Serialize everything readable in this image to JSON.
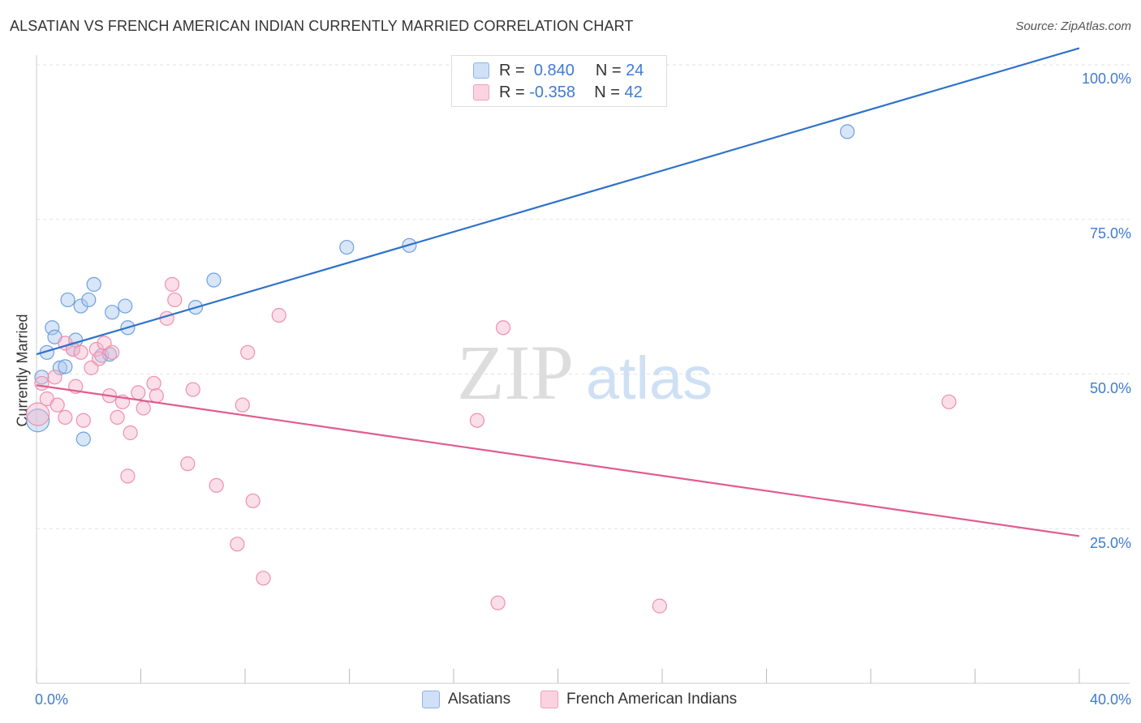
{
  "title": "ALSATIAN VS FRENCH AMERICAN INDIAN CURRENTLY MARRIED CORRELATION CHART",
  "source": "Source: ZipAtlas.com",
  "watermark": {
    "zip": "ZIP",
    "atlas": "atlas"
  },
  "legend_top": [
    {
      "r_label": "R =",
      "r_value": "0.840",
      "n_label": "N =",
      "n_value": "24",
      "color": "#a9c7f0"
    },
    {
      "r_label": "R =",
      "r_value": "-0.358",
      "n_label": "N =",
      "n_value": "42",
      "color": "#f6b8cc"
    }
  ],
  "x_tick_labels": {
    "min": "0.0%",
    "max": "40.0%"
  },
  "y_tick_labels": [
    "100.0%",
    "75.0%",
    "50.0%",
    "25.0%"
  ],
  "chart_data": {
    "type": "scatter",
    "title": "ALSATIAN VS FRENCH AMERICAN INDIAN CURRENTLY MARRIED CORRELATION CHART",
    "xlabel": "",
    "ylabel": "Currently Married",
    "xlim": [
      0,
      40
    ],
    "ylim": [
      0,
      100
    ],
    "y_ticks": [
      25,
      50,
      75,
      100
    ],
    "grid": "horizontal dashed",
    "legend_position": "bottom",
    "series": [
      {
        "name": "Alsatians",
        "color": "#6fa0e0",
        "fill": "#a9c7f0",
        "trend": {
          "x": [
            0,
            40
          ],
          "y": [
            53.2,
            102.7
          ],
          "color": "#2f72c9"
        },
        "points": [
          {
            "x": 0.2,
            "y": 49.5
          },
          {
            "x": 0.4,
            "y": 53.5
          },
          {
            "x": 0.6,
            "y": 57.5
          },
          {
            "x": 0.7,
            "y": 56.0
          },
          {
            "x": 0.9,
            "y": 51.0
          },
          {
            "x": 1.1,
            "y": 51.2
          },
          {
            "x": 1.2,
            "y": 62.0
          },
          {
            "x": 1.4,
            "y": 54.0
          },
          {
            "x": 1.5,
            "y": 55.5
          },
          {
            "x": 1.7,
            "y": 61.0
          },
          {
            "x": 2.0,
            "y": 62.0
          },
          {
            "x": 2.2,
            "y": 64.5
          },
          {
            "x": 2.5,
            "y": 53.0
          },
          {
            "x": 2.8,
            "y": 53.2
          },
          {
            "x": 2.9,
            "y": 60.0
          },
          {
            "x": 3.4,
            "y": 61.0
          },
          {
            "x": 3.5,
            "y": 57.5
          },
          {
            "x": 6.1,
            "y": 60.8
          },
          {
            "x": 6.8,
            "y": 65.2
          },
          {
            "x": 11.9,
            "y": 70.5
          },
          {
            "x": 14.3,
            "y": 70.8
          },
          {
            "x": 31.1,
            "y": 89.2
          },
          {
            "x": 1.8,
            "y": 39.5
          },
          {
            "x": 0.05,
            "y": 42.5
          }
        ]
      },
      {
        "name": "French American Indians",
        "color": "#ef8fae",
        "fill": "#f6b8cc",
        "trend": {
          "x": [
            0,
            40
          ],
          "y": [
            48.2,
            23.8
          ],
          "color": "#e05c8f"
        },
        "points": [
          {
            "x": 0.05,
            "y": 43.5
          },
          {
            "x": 0.2,
            "y": 48.5
          },
          {
            "x": 0.4,
            "y": 46.0
          },
          {
            "x": 0.7,
            "y": 49.5
          },
          {
            "x": 0.8,
            "y": 45.0
          },
          {
            "x": 1.1,
            "y": 55.0
          },
          {
            "x": 1.1,
            "y": 43.0
          },
          {
            "x": 1.4,
            "y": 54.0
          },
          {
            "x": 1.5,
            "y": 48.0
          },
          {
            "x": 1.7,
            "y": 53.5
          },
          {
            "x": 1.8,
            "y": 42.5
          },
          {
            "x": 2.1,
            "y": 51.0
          },
          {
            "x": 2.3,
            "y": 54.0
          },
          {
            "x": 2.4,
            "y": 52.5
          },
          {
            "x": 2.6,
            "y": 55.0
          },
          {
            "x": 2.8,
            "y": 46.5
          },
          {
            "x": 2.9,
            "y": 53.5
          },
          {
            "x": 3.1,
            "y": 43.0
          },
          {
            "x": 3.3,
            "y": 45.5
          },
          {
            "x": 3.5,
            "y": 33.5
          },
          {
            "x": 3.6,
            "y": 40.5
          },
          {
            "x": 3.9,
            "y": 47.0
          },
          {
            "x": 4.1,
            "y": 44.5
          },
          {
            "x": 4.5,
            "y": 48.5
          },
          {
            "x": 4.6,
            "y": 46.5
          },
          {
            "x": 5.0,
            "y": 59.0
          },
          {
            "x": 5.2,
            "y": 64.5
          },
          {
            "x": 5.3,
            "y": 62.0
          },
          {
            "x": 5.8,
            "y": 35.5
          },
          {
            "x": 6.0,
            "y": 47.5
          },
          {
            "x": 6.9,
            "y": 32.0
          },
          {
            "x": 7.7,
            "y": 22.5
          },
          {
            "x": 7.9,
            "y": 45.0
          },
          {
            "x": 8.1,
            "y": 53.5
          },
          {
            "x": 8.3,
            "y": 29.5
          },
          {
            "x": 8.7,
            "y": 17.0
          },
          {
            "x": 9.3,
            "y": 59.5
          },
          {
            "x": 16.9,
            "y": 42.5
          },
          {
            "x": 17.7,
            "y": 13.0
          },
          {
            "x": 17.9,
            "y": 57.5
          },
          {
            "x": 23.9,
            "y": 12.5
          },
          {
            "x": 35.0,
            "y": 45.5
          }
        ]
      }
    ]
  }
}
